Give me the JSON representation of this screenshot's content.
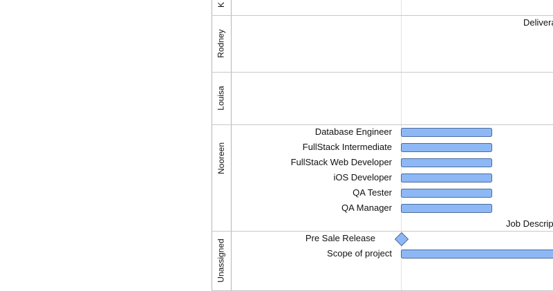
{
  "colors": {
    "bar_fill": "#8db8f5",
    "bar_stroke": "#4a6b9a",
    "grid_line": "#c8c8c8",
    "lane_border": "#b5b5b5",
    "text": "#111111"
  },
  "lanes": [
    {
      "name": "K",
      "tasks": [],
      "floating_label": ""
    },
    {
      "name": "Rodney",
      "tasks": [],
      "floating_label": "Delivera"
    },
    {
      "name": "Louisa",
      "tasks": [],
      "floating_label": ""
    },
    {
      "name": "Nooreen",
      "tasks": [
        {
          "label": "Database Engineer",
          "type": "bar"
        },
        {
          "label": "FullStack Intermediate",
          "type": "bar"
        },
        {
          "label": "FullStack Web Developer",
          "type": "bar"
        },
        {
          "label": "iOS Developer",
          "type": "bar"
        },
        {
          "label": "QA Tester",
          "type": "bar"
        },
        {
          "label": "QA Manager",
          "type": "bar"
        }
      ],
      "floating_label": "Job Descrip"
    },
    {
      "name": "Unassigned",
      "tasks": [
        {
          "label": "Pre Sale Release",
          "type": "milestone"
        },
        {
          "label": "Scope of project",
          "type": "bar"
        }
      ],
      "floating_label": ""
    }
  ]
}
